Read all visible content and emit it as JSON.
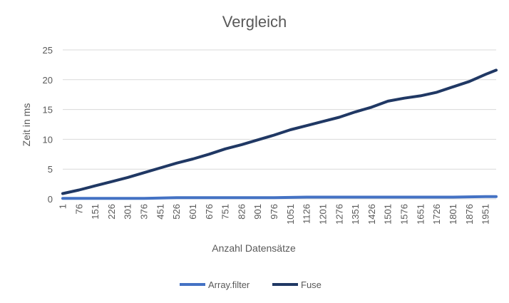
{
  "chart_data": {
    "type": "line",
    "title": "Vergleich",
    "xlabel": "Anzahl Datensätze",
    "ylabel": "Zeit in ms",
    "ylim": [
      0,
      25
    ],
    "yticks": [
      0,
      5,
      10,
      15,
      20,
      25
    ],
    "xrange": [
      1,
      2000
    ],
    "xtick_labels": [
      "1",
      "76",
      "151",
      "226",
      "301",
      "376",
      "451",
      "526",
      "601",
      "676",
      "751",
      "826",
      "901",
      "976",
      "1051",
      "1126",
      "1201",
      "1276",
      "1351",
      "1426",
      "1501",
      "1576",
      "1651",
      "1726",
      "1801",
      "1876",
      "1951"
    ],
    "grid": "horizontal",
    "legend_position": "bottom",
    "x": [
      1,
      76,
      151,
      226,
      301,
      376,
      451,
      526,
      601,
      676,
      751,
      826,
      901,
      976,
      1051,
      1126,
      1201,
      1276,
      1351,
      1426,
      1501,
      1576,
      1651,
      1726,
      1801,
      1876,
      1951,
      2000
    ],
    "series": [
      {
        "name": "Array.filter",
        "color": "#4472C4",
        "values": [
          0.1,
          0.1,
          0.1,
          0.1,
          0.1,
          0.1,
          0.15,
          0.2,
          0.2,
          0.2,
          0.2,
          0.2,
          0.2,
          0.2,
          0.25,
          0.3,
          0.3,
          0.3,
          0.3,
          0.3,
          0.3,
          0.3,
          0.3,
          0.3,
          0.3,
          0.35,
          0.4,
          0.4
        ]
      },
      {
        "name": "Fuse",
        "color": "#203864",
        "values": [
          0.9,
          1.5,
          2.2,
          2.9,
          3.6,
          4.4,
          5.2,
          6.0,
          6.7,
          7.5,
          8.4,
          9.1,
          9.9,
          10.7,
          11.6,
          12.3,
          13.0,
          13.7,
          14.6,
          15.4,
          16.4,
          16.9,
          17.3,
          17.9,
          18.8,
          19.7,
          20.9,
          21.6
        ]
      }
    ]
  }
}
